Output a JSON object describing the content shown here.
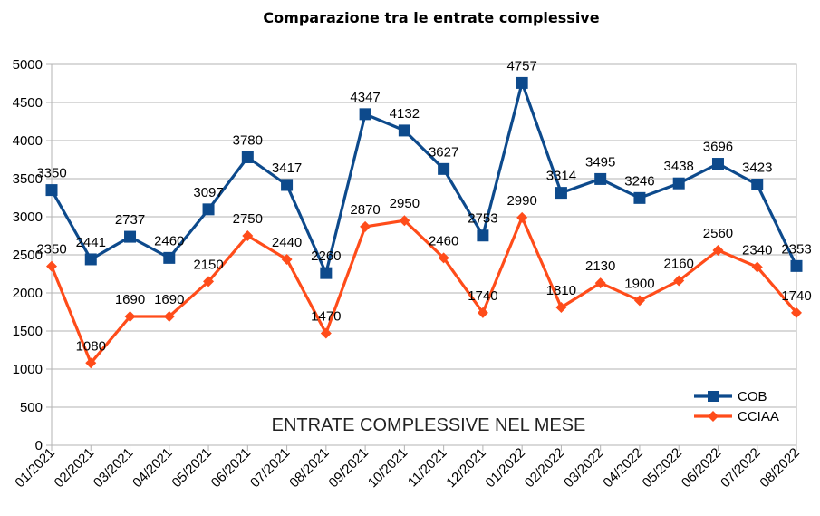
{
  "chart_data": {
    "type": "line",
    "title": "Comparazione tra le entrate complessive",
    "annotation": "ENTRATE COMPLESSIVE NEL MESE",
    "categories": [
      "01/2021",
      "02/2021",
      "03/2021",
      "04/2021",
      "05/2021",
      "06/2021",
      "07/2021",
      "08/2021",
      "09/2021",
      "10/2021",
      "11/2021",
      "12/2021",
      "01/2022",
      "02/2022",
      "03/2022",
      "04/2022",
      "05/2022",
      "06/2022",
      "07/2022",
      "08/2022"
    ],
    "series": [
      {
        "name": "COB",
        "color": "#0d4a8c",
        "marker": "square",
        "values": [
          3350,
          2441,
          2737,
          2460,
          3097,
          3780,
          3417,
          2260,
          4347,
          4132,
          3627,
          2753,
          4757,
          3314,
          3495,
          3246,
          3438,
          3696,
          3423,
          2353
        ]
      },
      {
        "name": "CCIAA",
        "color": "#ff4c1a",
        "marker": "diamond",
        "values": [
          2350,
          1080,
          1690,
          1690,
          2150,
          2750,
          2440,
          1470,
          2870,
          2950,
          2460,
          1740,
          2990,
          1810,
          2130,
          1900,
          2160,
          2560,
          2340,
          1740
        ]
      }
    ],
    "ylim": [
      0,
      5000
    ],
    "yticks": [
      0,
      500,
      1000,
      1500,
      2000,
      2500,
      3000,
      3500,
      4000,
      4500,
      5000
    ],
    "grid": "horizontal",
    "legend": "bottom-right",
    "xlabel": "",
    "ylabel": ""
  }
}
